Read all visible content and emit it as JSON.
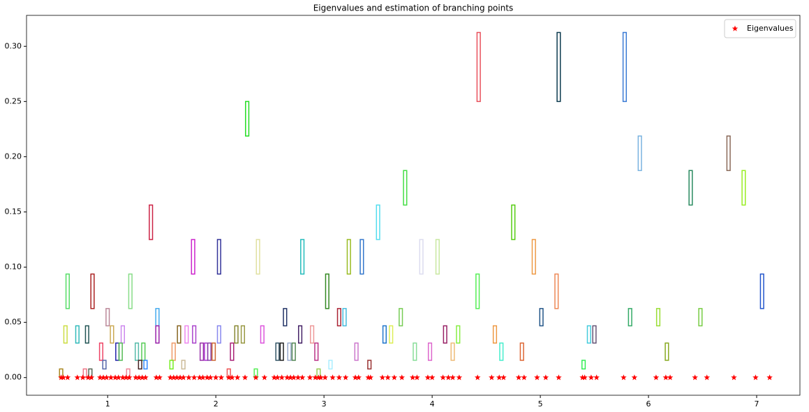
{
  "chart_data": {
    "type": "scatter",
    "title": "Eigenvalues and estimation of branching points",
    "xlim": [
      0.25,
      7.4
    ],
    "ylim": [
      -0.016,
      0.328
    ],
    "xticks": [
      1,
      2,
      3,
      4,
      5,
      6,
      7
    ],
    "yticks": [
      {
        "value": 0,
        "label": "0.00"
      },
      {
        "value": 0.05,
        "label": "0.05"
      },
      {
        "value": 0.1,
        "label": "0.10"
      },
      {
        "value": 0.15,
        "label": "0.15"
      },
      {
        "value": 0.2,
        "label": "0.20"
      },
      {
        "value": 0.25,
        "label": "0.25"
      },
      {
        "value": 0.3,
        "label": "0.30"
      }
    ],
    "legend": "upper right",
    "series": [
      {
        "name": "Eigenvalues",
        "color": "#ff0000",
        "marker": "star",
        "x": [
          0.57,
          0.59,
          0.63,
          0.72,
          0.77,
          0.82,
          0.85,
          0.93,
          0.96,
          0.99,
          1.03,
          1.07,
          1.1,
          1.14,
          1.17,
          1.2,
          1.26,
          1.29,
          1.32,
          1.35,
          1.45,
          1.48,
          1.58,
          1.61,
          1.64,
          1.67,
          1.7,
          1.75,
          1.8,
          1.85,
          1.88,
          1.92,
          1.95,
          2.0,
          2.05,
          2.12,
          2.15,
          2.2,
          2.27,
          2.37,
          2.45,
          2.54,
          2.57,
          2.61,
          2.66,
          2.69,
          2.72,
          2.76,
          2.8,
          2.87,
          2.92,
          2.95,
          2.97,
          3.01,
          3.08,
          3.14,
          3.2,
          3.29,
          3.32,
          3.41,
          3.43,
          3.54,
          3.59,
          3.65,
          3.72,
          3.82,
          3.86,
          3.96,
          4.0,
          4.1,
          4.15,
          4.19,
          4.25,
          4.42,
          4.55,
          4.62,
          4.66,
          4.8,
          4.85,
          4.97,
          5.05,
          5.17,
          5.39,
          5.41,
          5.47,
          5.52,
          5.77,
          5.87,
          6.07,
          6.16,
          6.2,
          6.43,
          6.54,
          6.79,
          6.99,
          7.12
        ],
        "values": [
          0,
          0,
          0,
          0,
          0,
          0,
          0,
          0,
          0,
          0,
          0,
          0,
          0,
          0,
          0,
          0,
          0,
          0,
          0,
          0,
          0,
          0,
          0,
          0,
          0,
          0,
          0,
          0,
          0,
          0,
          0,
          0,
          0,
          0,
          0,
          0,
          0,
          0,
          0,
          0,
          0,
          0,
          0,
          0,
          0,
          0,
          0,
          0,
          0,
          0,
          0,
          0,
          0,
          0,
          0,
          0,
          0,
          0,
          0,
          0,
          0,
          0,
          0,
          0,
          0,
          0,
          0,
          0,
          0,
          0,
          0,
          0,
          0,
          0,
          0,
          0,
          0,
          0,
          0,
          0,
          0,
          0,
          0,
          0,
          0,
          0,
          0,
          0,
          0,
          0,
          0,
          0,
          0,
          0,
          0,
          0
        ]
      }
    ],
    "interval_width": 0.03,
    "intervals": [
      {
        "x": 4.43,
        "y0": 0.25,
        "y1": 0.3125,
        "color": "#e8505b"
      },
      {
        "x": 5.17,
        "y0": 0.25,
        "y1": 0.3125,
        "color": "#0d3b4f"
      },
      {
        "x": 5.78,
        "y0": 0.25,
        "y1": 0.3125,
        "color": "#3a7bd5"
      },
      {
        "x": 2.29,
        "y0": 0.21875,
        "y1": 0.25,
        "color": "#22dd22"
      },
      {
        "x": 5.92,
        "y0": 0.1875,
        "y1": 0.21875,
        "color": "#7ab3e0"
      },
      {
        "x": 6.74,
        "y0": 0.1875,
        "y1": 0.21875,
        "color": "#8a6a5a"
      },
      {
        "x": 3.75,
        "y0": 0.15625,
        "y1": 0.1875,
        "color": "#44dd44"
      },
      {
        "x": 6.39,
        "y0": 0.15625,
        "y1": 0.1875,
        "color": "#2a8a60"
      },
      {
        "x": 6.88,
        "y0": 0.15625,
        "y1": 0.1875,
        "color": "#99ee22"
      },
      {
        "x": 1.4,
        "y0": 0.125,
        "y1": 0.15625,
        "color": "#cc2244"
      },
      {
        "x": 3.5,
        "y0": 0.125,
        "y1": 0.15625,
        "color": "#55ddee"
      },
      {
        "x": 4.75,
        "y0": 0.125,
        "y1": 0.15625,
        "color": "#55cc11"
      },
      {
        "x": 1.79,
        "y0": 0.09375,
        "y1": 0.125,
        "color": "#cc22cc"
      },
      {
        "x": 2.03,
        "y0": 0.09375,
        "y1": 0.125,
        "color": "#333399"
      },
      {
        "x": 2.39,
        "y0": 0.09375,
        "y1": 0.125,
        "color": "#e0e0a0"
      },
      {
        "x": 2.8,
        "y0": 0.09375,
        "y1": 0.125,
        "color": "#22bbbb"
      },
      {
        "x": 3.23,
        "y0": 0.09375,
        "y1": 0.125,
        "color": "#99bb22"
      },
      {
        "x": 3.35,
        "y0": 0.09375,
        "y1": 0.125,
        "color": "#3377cc"
      },
      {
        "x": 3.9,
        "y0": 0.09375,
        "y1": 0.125,
        "color": "#dcdcef"
      },
      {
        "x": 4.05,
        "y0": 0.09375,
        "y1": 0.125,
        "color": "#c8e8a0"
      },
      {
        "x": 4.94,
        "y0": 0.09375,
        "y1": 0.125,
        "color": "#ee9944"
      },
      {
        "x": 0.63,
        "y0": 0.0625,
        "y1": 0.09375,
        "color": "#55dd66"
      },
      {
        "x": 0.86,
        "y0": 0.0625,
        "y1": 0.09375,
        "color": "#aa2222"
      },
      {
        "x": 1.21,
        "y0": 0.0625,
        "y1": 0.09375,
        "color": "#88dd88"
      },
      {
        "x": 3.03,
        "y0": 0.0625,
        "y1": 0.09375,
        "color": "#338822"
      },
      {
        "x": 4.42,
        "y0": 0.0625,
        "y1": 0.09375,
        "color": "#55ee55"
      },
      {
        "x": 5.15,
        "y0": 0.0625,
        "y1": 0.09375,
        "color": "#ee8855"
      },
      {
        "x": 7.05,
        "y0": 0.0625,
        "y1": 0.09375,
        "color": "#2255cc"
      },
      {
        "x": 1.0,
        "y0": 0.046875,
        "y1": 0.0625,
        "color": "#bb8899"
      },
      {
        "x": 1.46,
        "y0": 0.046875,
        "y1": 0.0625,
        "color": "#44aaee"
      },
      {
        "x": 2.64,
        "y0": 0.046875,
        "y1": 0.0625,
        "color": "#223366"
      },
      {
        "x": 3.14,
        "y0": 0.046875,
        "y1": 0.0625,
        "color": "#aa2233"
      },
      {
        "x": 3.19,
        "y0": 0.046875,
        "y1": 0.0625,
        "color": "#44bbdd"
      },
      {
        "x": 3.71,
        "y0": 0.046875,
        "y1": 0.0625,
        "color": "#77cc55"
      },
      {
        "x": 5.01,
        "y0": 0.046875,
        "y1": 0.0625,
        "color": "#225588"
      },
      {
        "x": 5.83,
        "y0": 0.046875,
        "y1": 0.0625,
        "color": "#33aa66"
      },
      {
        "x": 6.09,
        "y0": 0.046875,
        "y1": 0.0625,
        "color": "#99dd33"
      },
      {
        "x": 6.48,
        "y0": 0.046875,
        "y1": 0.0625,
        "color": "#77cc44"
      },
      {
        "x": 0.61,
        "y0": 0.03125,
        "y1": 0.046875,
        "color": "#ccdd44"
      },
      {
        "x": 0.72,
        "y0": 0.03125,
        "y1": 0.046875,
        "color": "#33bbbb"
      },
      {
        "x": 0.81,
        "y0": 0.03125,
        "y1": 0.046875,
        "color": "#225555"
      },
      {
        "x": 1.04,
        "y0": 0.03125,
        "y1": 0.046875,
        "color": "#ccaa55"
      },
      {
        "x": 1.14,
        "y0": 0.03125,
        "y1": 0.046875,
        "color": "#cc88ee"
      },
      {
        "x": 1.46,
        "y0": 0.03125,
        "y1": 0.046875,
        "color": "#9922aa"
      },
      {
        "x": 1.66,
        "y0": 0.03125,
        "y1": 0.046875,
        "color": "#886622"
      },
      {
        "x": 1.73,
        "y0": 0.03125,
        "y1": 0.046875,
        "color": "#ee88ee"
      },
      {
        "x": 1.8,
        "y0": 0.03125,
        "y1": 0.046875,
        "color": "#aa44cc"
      },
      {
        "x": 2.03,
        "y0": 0.03125,
        "y1": 0.046875,
        "color": "#8888ee"
      },
      {
        "x": 2.19,
        "y0": 0.03125,
        "y1": 0.046875,
        "color": "#888833"
      },
      {
        "x": 2.25,
        "y0": 0.03125,
        "y1": 0.046875,
        "color": "#999944"
      },
      {
        "x": 2.43,
        "y0": 0.03125,
        "y1": 0.046875,
        "color": "#dd55dd"
      },
      {
        "x": 2.78,
        "y0": 0.03125,
        "y1": 0.046875,
        "color": "#442266"
      },
      {
        "x": 2.89,
        "y0": 0.03125,
        "y1": 0.046875,
        "color": "#ee9999"
      },
      {
        "x": 3.56,
        "y0": 0.03125,
        "y1": 0.046875,
        "color": "#2277cc"
      },
      {
        "x": 3.62,
        "y0": 0.03125,
        "y1": 0.046875,
        "color": "#ddee55"
      },
      {
        "x": 4.12,
        "y0": 0.03125,
        "y1": 0.046875,
        "color": "#992266"
      },
      {
        "x": 4.24,
        "y0": 0.03125,
        "y1": 0.046875,
        "color": "#88ee44"
      },
      {
        "x": 4.58,
        "y0": 0.03125,
        "y1": 0.046875,
        "color": "#ee9944"
      },
      {
        "x": 5.45,
        "y0": 0.03125,
        "y1": 0.046875,
        "color": "#44ccdd"
      },
      {
        "x": 5.5,
        "y0": 0.03125,
        "y1": 0.046875,
        "color": "#665577"
      },
      {
        "x": 0.94,
        "y0": 0.015625,
        "y1": 0.03125,
        "color": "#ee4466"
      },
      {
        "x": 1.09,
        "y0": 0.015625,
        "y1": 0.03125,
        "color": "#2222aa"
      },
      {
        "x": 1.12,
        "y0": 0.015625,
        "y1": 0.03125,
        "color": "#55bb55"
      },
      {
        "x": 1.27,
        "y0": 0.015625,
        "y1": 0.03125,
        "color": "#55bbaa"
      },
      {
        "x": 1.33,
        "y0": 0.015625,
        "y1": 0.03125,
        "color": "#55cc55"
      },
      {
        "x": 1.61,
        "y0": 0.015625,
        "y1": 0.03125,
        "color": "#ee9966"
      },
      {
        "x": 1.87,
        "y0": 0.015625,
        "y1": 0.03125,
        "color": "#9933aa"
      },
      {
        "x": 1.91,
        "y0": 0.015625,
        "y1": 0.03125,
        "color": "#aa33cc"
      },
      {
        "x": 1.94,
        "y0": 0.015625,
        "y1": 0.03125,
        "color": "#8844aa"
      },
      {
        "x": 1.98,
        "y0": 0.015625,
        "y1": 0.03125,
        "color": "#cc6633"
      },
      {
        "x": 2.15,
        "y0": 0.015625,
        "y1": 0.03125,
        "color": "#aa2277"
      },
      {
        "x": 2.57,
        "y0": 0.015625,
        "y1": 0.03125,
        "color": "#335566"
      },
      {
        "x": 2.61,
        "y0": 0.015625,
        "y1": 0.03125,
        "color": "#222222"
      },
      {
        "x": 2.68,
        "y0": 0.015625,
        "y1": 0.03125,
        "color": "#99aacc"
      },
      {
        "x": 2.72,
        "y0": 0.015625,
        "y1": 0.03125,
        "color": "#558855"
      },
      {
        "x": 2.93,
        "y0": 0.015625,
        "y1": 0.03125,
        "color": "#bb3388"
      },
      {
        "x": 3.3,
        "y0": 0.015625,
        "y1": 0.03125,
        "color": "#cc77cc"
      },
      {
        "x": 3.84,
        "y0": 0.015625,
        "y1": 0.03125,
        "color": "#88dd99"
      },
      {
        "x": 3.98,
        "y0": 0.015625,
        "y1": 0.03125,
        "color": "#dd66cc"
      },
      {
        "x": 4.19,
        "y0": 0.015625,
        "y1": 0.03125,
        "color": "#eebb77"
      },
      {
        "x": 4.64,
        "y0": 0.015625,
        "y1": 0.03125,
        "color": "#44eecc"
      },
      {
        "x": 4.83,
        "y0": 0.015625,
        "y1": 0.03125,
        "color": "#dd6633"
      },
      {
        "x": 6.17,
        "y0": 0.015625,
        "y1": 0.03125,
        "color": "#88aa22"
      },
      {
        "x": 0.97,
        "y0": 0.0078125,
        "y1": 0.015625,
        "color": "#5566aa"
      },
      {
        "x": 1.3,
        "y0": 0.0078125,
        "y1": 0.015625,
        "color": "#442222"
      },
      {
        "x": 1.35,
        "y0": 0.0078125,
        "y1": 0.015625,
        "color": "#3388ff"
      },
      {
        "x": 1.59,
        "y0": 0.0078125,
        "y1": 0.015625,
        "color": "#77ee22"
      },
      {
        "x": 1.7,
        "y0": 0.0078125,
        "y1": 0.015625,
        "color": "#ccbb99"
      },
      {
        "x": 3.06,
        "y0": 0.0078125,
        "y1": 0.015625,
        "color": "#aaeeff"
      },
      {
        "x": 3.42,
        "y0": 0.0078125,
        "y1": 0.015625,
        "color": "#993333"
      },
      {
        "x": 5.4,
        "y0": 0.0078125,
        "y1": 0.015625,
        "color": "#33ee55"
      },
      {
        "x": 0.57,
        "y0": 0,
        "y1": 0.0078125,
        "color": "#aa8822"
      },
      {
        "x": 0.79,
        "y0": 0,
        "y1": 0.0078125,
        "color": "#ee7788"
      },
      {
        "x": 0.84,
        "y0": 0,
        "y1": 0.0078125,
        "color": "#556655"
      },
      {
        "x": 1.19,
        "y0": 0,
        "y1": 0.0078125,
        "color": "#ee8899"
      },
      {
        "x": 2.12,
        "y0": 0,
        "y1": 0.0078125,
        "color": "#ee5555"
      },
      {
        "x": 2.37,
        "y0": 0,
        "y1": 0.0078125,
        "color": "#55ee55"
      },
      {
        "x": 2.95,
        "y0": 0,
        "y1": 0.0078125,
        "color": "#99cc55"
      }
    ]
  }
}
